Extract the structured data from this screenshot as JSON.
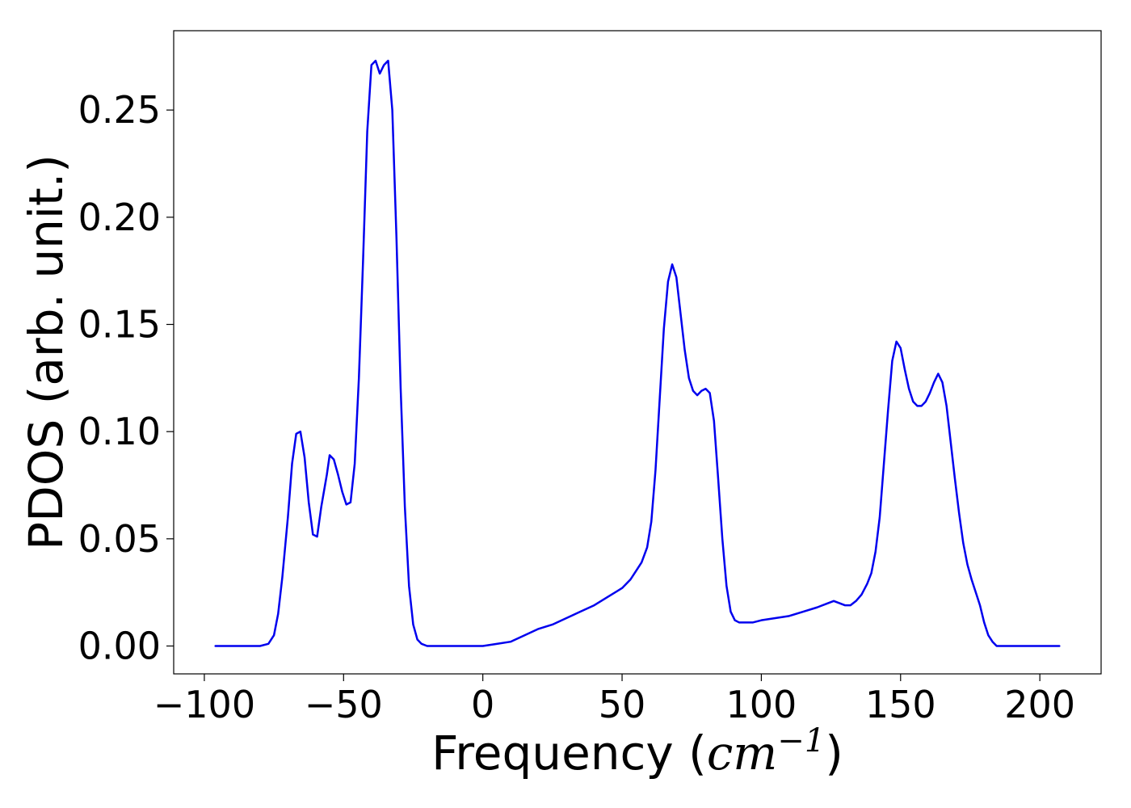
{
  "chart_data": {
    "type": "line",
    "title": "",
    "xlabel": "Frequency",
    "xlabel_unit": "cm",
    "xlabel_unit_exponent": "−1",
    "ylabel": "PDOS (arb. unit.)",
    "xlim": [
      -111,
      222
    ],
    "ylim": [
      -0.013,
      0.287
    ],
    "xticks": [
      -100,
      -50,
      0,
      50,
      100,
      150,
      200
    ],
    "xtick_labels": [
      "−100",
      "−50",
      "0",
      "50",
      "100",
      "150",
      "200"
    ],
    "yticks": [
      0.0,
      0.05,
      0.1,
      0.15,
      0.2,
      0.25
    ],
    "ytick_labels": [
      "0.00",
      "0.05",
      "0.10",
      "0.15",
      "0.20",
      "0.25"
    ],
    "grid": false,
    "legend": "none",
    "series": [
      {
        "color": "#0000ee",
        "x": [
          -96,
          -80,
          -77,
          -75,
          -73.5,
          -72,
          -70,
          -68.5,
          -67,
          -65.5,
          -64,
          -62.5,
          -61,
          -59.5,
          -58,
          -56,
          -55,
          -53.5,
          -52,
          -50.5,
          -49,
          -47.5,
          -46,
          -44.5,
          -43,
          -41.5,
          -40,
          -38.5,
          -37,
          -35.5,
          -34,
          -32.5,
          -31,
          -29.5,
          -28,
          -26.5,
          -25,
          -23.5,
          -22,
          -20,
          -18,
          -15,
          -5,
          0,
          5,
          10,
          15,
          20,
          25,
          30,
          35,
          40,
          45,
          50,
          53,
          55,
          57,
          59,
          60.5,
          62,
          63.5,
          65,
          66.5,
          68,
          69.5,
          71,
          72.5,
          74,
          75.5,
          77,
          78.5,
          80,
          81.5,
          83,
          84.5,
          86,
          87.5,
          89,
          90.5,
          92,
          94,
          97,
          100,
          105,
          110,
          115,
          120,
          124,
          126,
          128,
          130,
          132,
          134,
          136,
          138,
          139.5,
          141,
          142.5,
          144,
          145.5,
          147,
          148.5,
          150,
          151.5,
          153,
          154.5,
          156,
          157.5,
          159,
          160.5,
          162,
          163.5,
          165,
          166.5,
          168,
          169.5,
          171,
          172.5,
          174,
          175.5,
          177,
          178.5,
          180,
          181.5,
          183,
          184.5,
          186,
          188,
          191,
          195,
          207
        ],
        "y": [
          0.0,
          0.0,
          0.001,
          0.005,
          0.015,
          0.032,
          0.06,
          0.085,
          0.099,
          0.1,
          0.088,
          0.067,
          0.052,
          0.051,
          0.065,
          0.08,
          0.089,
          0.087,
          0.08,
          0.072,
          0.066,
          0.067,
          0.085,
          0.125,
          0.18,
          0.24,
          0.271,
          0.273,
          0.267,
          0.271,
          0.273,
          0.25,
          0.19,
          0.12,
          0.065,
          0.028,
          0.01,
          0.003,
          0.001,
          0.0,
          0.0,
          0.0,
          0.0,
          0.0,
          0.001,
          0.002,
          0.005,
          0.008,
          0.01,
          0.013,
          0.016,
          0.019,
          0.023,
          0.027,
          0.031,
          0.035,
          0.039,
          0.046,
          0.058,
          0.082,
          0.115,
          0.148,
          0.17,
          0.178,
          0.172,
          0.155,
          0.138,
          0.125,
          0.119,
          0.117,
          0.119,
          0.12,
          0.118,
          0.105,
          0.078,
          0.05,
          0.028,
          0.016,
          0.012,
          0.011,
          0.011,
          0.011,
          0.012,
          0.013,
          0.014,
          0.016,
          0.018,
          0.02,
          0.021,
          0.02,
          0.019,
          0.019,
          0.021,
          0.024,
          0.029,
          0.034,
          0.044,
          0.06,
          0.085,
          0.11,
          0.133,
          0.142,
          0.139,
          0.129,
          0.12,
          0.114,
          0.112,
          0.112,
          0.114,
          0.118,
          0.123,
          0.127,
          0.123,
          0.112,
          0.095,
          0.078,
          0.062,
          0.048,
          0.038,
          0.031,
          0.025,
          0.019,
          0.011,
          0.005,
          0.002,
          0.0,
          0.0,
          0.0,
          0.0,
          0.0,
          0.0
        ]
      }
    ]
  }
}
